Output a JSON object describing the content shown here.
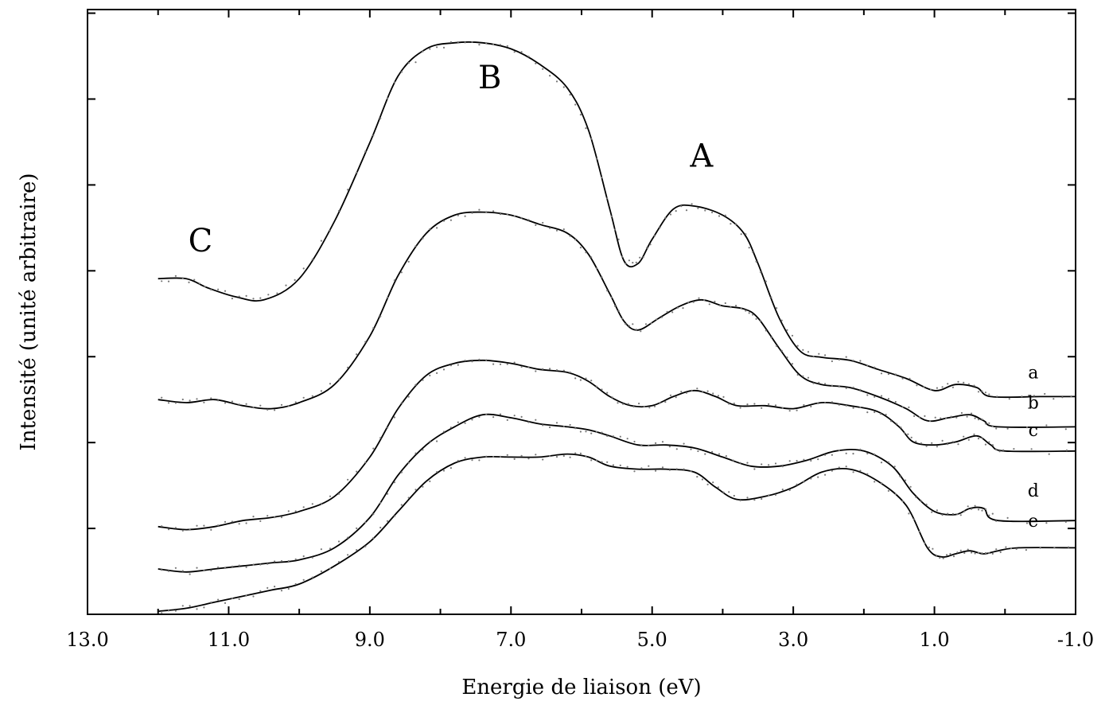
{
  "chart_data": {
    "type": "line",
    "title": "",
    "xlabel": "Energie de liaison (eV)",
    "ylabel": "Intensité (unité arbitraire)",
    "xlim": [
      13.0,
      -1.0
    ],
    "ylim": [
      0,
      10
    ],
    "x_reversed": true,
    "y_tick_labels_shown": false,
    "grid": false,
    "x_ticks": [
      13.0,
      11.0,
      9.0,
      7.0,
      5.0,
      3.0,
      1.0,
      -1.0
    ],
    "x_tick_labels": [
      "13.0",
      "11.0",
      "9.0",
      "7.0",
      "5.0",
      "3.0",
      "1.0",
      "-1.0"
    ],
    "y_ticks": [
      1,
      2,
      3,
      4,
      5,
      6,
      7
    ],
    "annotations": [
      {
        "text": "C",
        "x": 11.4,
        "y": 6.0
      },
      {
        "text": "B",
        "x": 7.3,
        "y": 8.7
      },
      {
        "text": "A",
        "x": 4.3,
        "y": 7.4
      }
    ],
    "series": [
      {
        "name": "a",
        "points": [
          [
            12.0,
            5.55
          ],
          [
            11.6,
            5.55
          ],
          [
            11.3,
            5.4
          ],
          [
            10.9,
            5.25
          ],
          [
            10.5,
            5.2
          ],
          [
            10.0,
            5.55
          ],
          [
            9.5,
            6.5
          ],
          [
            9.0,
            7.8
          ],
          [
            8.6,
            8.9
          ],
          [
            8.2,
            9.35
          ],
          [
            7.8,
            9.45
          ],
          [
            7.4,
            9.45
          ],
          [
            7.0,
            9.35
          ],
          [
            6.6,
            9.1
          ],
          [
            6.2,
            8.7
          ],
          [
            5.9,
            8.0
          ],
          [
            5.6,
            6.7
          ],
          [
            5.4,
            5.85
          ],
          [
            5.2,
            5.8
          ],
          [
            5.0,
            6.2
          ],
          [
            4.7,
            6.7
          ],
          [
            4.4,
            6.75
          ],
          [
            4.0,
            6.6
          ],
          [
            3.7,
            6.3
          ],
          [
            3.5,
            5.8
          ],
          [
            3.2,
            4.9
          ],
          [
            2.9,
            4.35
          ],
          [
            2.6,
            4.25
          ],
          [
            2.2,
            4.2
          ],
          [
            1.8,
            4.05
          ],
          [
            1.4,
            3.9
          ],
          [
            1.0,
            3.7
          ],
          [
            0.7,
            3.8
          ],
          [
            0.4,
            3.75
          ],
          [
            0.2,
            3.6
          ],
          [
            -0.5,
            3.6
          ],
          [
            -1.0,
            3.6
          ]
        ]
      },
      {
        "name": "b",
        "points": [
          [
            12.0,
            3.55
          ],
          [
            11.6,
            3.5
          ],
          [
            11.2,
            3.55
          ],
          [
            10.8,
            3.45
          ],
          [
            10.4,
            3.4
          ],
          [
            10.0,
            3.5
          ],
          [
            9.5,
            3.8
          ],
          [
            9.0,
            4.6
          ],
          [
            8.6,
            5.6
          ],
          [
            8.2,
            6.3
          ],
          [
            7.8,
            6.6
          ],
          [
            7.4,
            6.65
          ],
          [
            7.0,
            6.6
          ],
          [
            6.6,
            6.45
          ],
          [
            6.2,
            6.3
          ],
          [
            5.9,
            5.95
          ],
          [
            5.6,
            5.3
          ],
          [
            5.4,
            4.85
          ],
          [
            5.2,
            4.7
          ],
          [
            4.9,
            4.9
          ],
          [
            4.6,
            5.1
          ],
          [
            4.3,
            5.2
          ],
          [
            4.0,
            5.1
          ],
          [
            3.7,
            5.05
          ],
          [
            3.5,
            4.9
          ],
          [
            3.2,
            4.4
          ],
          [
            2.9,
            3.95
          ],
          [
            2.6,
            3.8
          ],
          [
            2.2,
            3.75
          ],
          [
            1.8,
            3.6
          ],
          [
            1.4,
            3.4
          ],
          [
            1.1,
            3.2
          ],
          [
            0.8,
            3.25
          ],
          [
            0.5,
            3.3
          ],
          [
            0.3,
            3.2
          ],
          [
            0.1,
            3.1
          ],
          [
            -1.0,
            3.1
          ]
        ]
      },
      {
        "name": "c",
        "points": [
          [
            12.0,
            1.45
          ],
          [
            11.6,
            1.4
          ],
          [
            11.2,
            1.45
          ],
          [
            10.8,
            1.55
          ],
          [
            10.4,
            1.6
          ],
          [
            10.0,
            1.7
          ],
          [
            9.5,
            1.95
          ],
          [
            9.0,
            2.6
          ],
          [
            8.6,
            3.4
          ],
          [
            8.2,
            3.95
          ],
          [
            7.8,
            4.15
          ],
          [
            7.4,
            4.2
          ],
          [
            7.0,
            4.15
          ],
          [
            6.6,
            4.05
          ],
          [
            6.2,
            4.0
          ],
          [
            5.9,
            3.85
          ],
          [
            5.6,
            3.6
          ],
          [
            5.3,
            3.45
          ],
          [
            5.0,
            3.45
          ],
          [
            4.7,
            3.6
          ],
          [
            4.4,
            3.7
          ],
          [
            4.1,
            3.6
          ],
          [
            3.8,
            3.45
          ],
          [
            3.4,
            3.45
          ],
          [
            3.0,
            3.4
          ],
          [
            2.6,
            3.5
          ],
          [
            2.2,
            3.45
          ],
          [
            1.8,
            3.35
          ],
          [
            1.5,
            3.1
          ],
          [
            1.3,
            2.85
          ],
          [
            1.0,
            2.8
          ],
          [
            0.7,
            2.85
          ],
          [
            0.4,
            2.95
          ],
          [
            0.2,
            2.8
          ],
          [
            0.0,
            2.7
          ],
          [
            -1.0,
            2.7
          ]
        ]
      },
      {
        "name": "d",
        "points": [
          [
            12.0,
            0.75
          ],
          [
            11.6,
            0.7
          ],
          [
            11.2,
            0.75
          ],
          [
            10.8,
            0.8
          ],
          [
            10.4,
            0.85
          ],
          [
            10.0,
            0.9
          ],
          [
            9.5,
            1.1
          ],
          [
            9.0,
            1.6
          ],
          [
            8.6,
            2.3
          ],
          [
            8.2,
            2.8
          ],
          [
            7.8,
            3.1
          ],
          [
            7.4,
            3.3
          ],
          [
            7.0,
            3.25
          ],
          [
            6.6,
            3.15
          ],
          [
            6.2,
            3.1
          ],
          [
            5.9,
            3.05
          ],
          [
            5.6,
            2.95
          ],
          [
            5.2,
            2.8
          ],
          [
            4.8,
            2.8
          ],
          [
            4.4,
            2.75
          ],
          [
            4.0,
            2.6
          ],
          [
            3.6,
            2.45
          ],
          [
            3.2,
            2.45
          ],
          [
            2.8,
            2.55
          ],
          [
            2.4,
            2.7
          ],
          [
            2.0,
            2.7
          ],
          [
            1.6,
            2.45
          ],
          [
            1.3,
            2.0
          ],
          [
            1.0,
            1.7
          ],
          [
            0.7,
            1.65
          ],
          [
            0.5,
            1.75
          ],
          [
            0.3,
            1.75
          ],
          [
            0.1,
            1.55
          ],
          [
            -1.0,
            1.55
          ]
        ]
      },
      {
        "name": "e",
        "points": [
          [
            12.0,
            0.05
          ],
          [
            11.6,
            0.1
          ],
          [
            11.2,
            0.2
          ],
          [
            10.8,
            0.3
          ],
          [
            10.4,
            0.4
          ],
          [
            10.0,
            0.5
          ],
          [
            9.5,
            0.8
          ],
          [
            9.0,
            1.2
          ],
          [
            8.6,
            1.7
          ],
          [
            8.2,
            2.2
          ],
          [
            7.8,
            2.5
          ],
          [
            7.4,
            2.6
          ],
          [
            7.0,
            2.6
          ],
          [
            6.6,
            2.6
          ],
          [
            6.2,
            2.65
          ],
          [
            5.9,
            2.6
          ],
          [
            5.6,
            2.45
          ],
          [
            5.2,
            2.4
          ],
          [
            4.8,
            2.4
          ],
          [
            4.4,
            2.35
          ],
          [
            4.1,
            2.1
          ],
          [
            3.8,
            1.9
          ],
          [
            3.4,
            1.95
          ],
          [
            3.0,
            2.1
          ],
          [
            2.6,
            2.35
          ],
          [
            2.2,
            2.4
          ],
          [
            1.8,
            2.2
          ],
          [
            1.4,
            1.8
          ],
          [
            1.1,
            1.1
          ],
          [
            0.9,
            0.95
          ],
          [
            0.7,
            1.0
          ],
          [
            0.5,
            1.05
          ],
          [
            0.3,
            1.0
          ],
          [
            0.1,
            1.05
          ],
          [
            -0.2,
            1.1
          ],
          [
            -1.0,
            1.1
          ]
        ]
      }
    ],
    "curve_labels": [
      {
        "text": "a",
        "x": -0.4,
        "y": 3.9
      },
      {
        "text": "b",
        "x": -0.4,
        "y": 3.4
      },
      {
        "text": "c",
        "x": -0.4,
        "y": 2.95
      },
      {
        "text": "d",
        "x": -0.4,
        "y": 1.95
      },
      {
        "text": "e",
        "x": -0.4,
        "y": 1.45
      }
    ]
  }
}
